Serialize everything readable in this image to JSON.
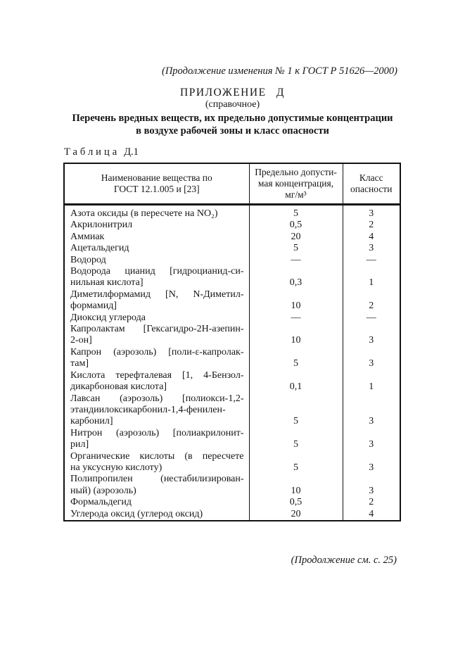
{
  "page": {
    "continuation_note": "(Продолжение изменения № 1 к ГОСТ Р 51626—2000)",
    "appendix_title": "ПРИЛОЖЕНИЕ Д",
    "appendix_subtitle": "(справочное)",
    "doc_title_line1": "Перечень вредных веществ, их предельно допустимые концентрации",
    "doc_title_line2": "в воздухе рабочей зоны и класс опасности",
    "footer_note": "(Продолжение см. с. 25)"
  },
  "table": {
    "caption_word": "Таблица",
    "caption_number": "Д.1",
    "headers": {
      "name": "Наименование вещества по\nГОСТ 12.1.005 и [23]",
      "concentration": "Предельно допусти-\nмая концентрация,\nмг/м³",
      "hazard": "Класс\nопасности"
    },
    "rows": [
      {
        "name_lines": [
          "Азота оксиды (в пересчете на NO₂)"
        ],
        "mpc": "5",
        "hazard": "3"
      },
      {
        "name_lines": [
          "Акрилонитрил"
        ],
        "mpc": "0,5",
        "hazard": "2"
      },
      {
        "name_lines": [
          "Аммиак"
        ],
        "mpc": "20",
        "hazard": "4"
      },
      {
        "name_lines": [
          "Ацетальдегид"
        ],
        "mpc": "5",
        "hazard": "3"
      },
      {
        "name_lines": [
          "Водород"
        ],
        "mpc": "—",
        "hazard": "—"
      },
      {
        "name_lines": [
          "Водорода цианид [гидроцианид-си-",
          "нильная кислота]"
        ],
        "mpc": "0,3",
        "hazard": "1"
      },
      {
        "name_lines": [
          "Диметилформамид [N, N-Диметил-",
          "формамид]"
        ],
        "mpc": "10",
        "hazard": "2"
      },
      {
        "name_lines": [
          "Диоксид углерода"
        ],
        "mpc": "—",
        "hazard": "—"
      },
      {
        "name_lines": [
          "Капролактам [Гексагидро-2Н-азепин-",
          "2-он]"
        ],
        "mpc": "10",
        "hazard": "3"
      },
      {
        "name_lines": [
          "Капрон (аэрозоль) [поли-ε-капролак-",
          "там]"
        ],
        "mpc": "5",
        "hazard": "3"
      },
      {
        "name_lines": [
          "Кислота терефталевая [1, 4-Бензол-",
          "дикарбоновая кислота]"
        ],
        "mpc": "0,1",
        "hazard": "1"
      },
      {
        "name_lines": [
          "Лавсан (аэрозоль) [полиокси-1,2-",
          "этандиилоксикарбонил-1,4-фенилен-",
          "карбонил]"
        ],
        "mpc": "5",
        "hazard": "3"
      },
      {
        "name_lines": [
          "Нитрон (аэрозоль) [полиакрилонит-",
          "рил]"
        ],
        "mpc": "5",
        "hazard": "3"
      },
      {
        "name_lines": [
          "Органические кислоты (в пересчете",
          "на уксусную кислоту)"
        ],
        "mpc": "5",
        "hazard": "3"
      },
      {
        "name_lines": [
          "Полипропилен (нестабилизирован-",
          "ный) (аэрозоль)"
        ],
        "mpc": "10",
        "hazard": "3"
      },
      {
        "name_lines": [
          "Формальдегид"
        ],
        "mpc": "0,5",
        "hazard": "2"
      },
      {
        "name_lines": [
          "Углерода оксид (углерод оксид)"
        ],
        "mpc": "20",
        "hazard": "4"
      }
    ]
  }
}
